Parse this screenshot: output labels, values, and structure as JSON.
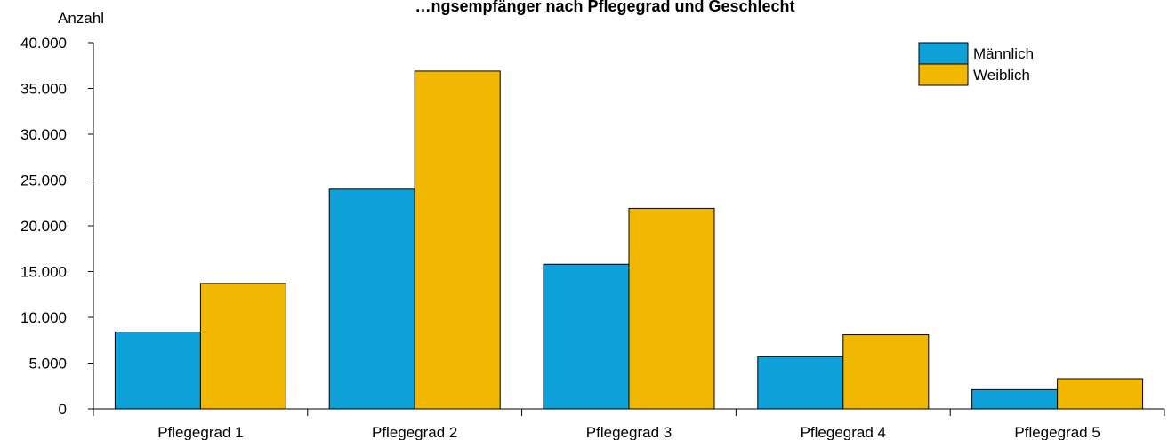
{
  "chart_data": {
    "type": "bar",
    "title": "…ngsempfänger nach Pflegegrad und Geschlecht",
    "ylabel": "Anzahl",
    "xlabel": "",
    "categories": [
      "Pflegegrad 1",
      "Pflegegrad 2",
      "Pflegegrad 3",
      "Pflegegrad 4",
      "Pflegegrad 5"
    ],
    "series": [
      {
        "name": "Männlich",
        "color": "#0ea0d8",
        "values": [
          8400,
          24000,
          15800,
          5700,
          2100
        ]
      },
      {
        "name": "Weiblich",
        "color": "#f2b700",
        "values": [
          13700,
          36900,
          21900,
          8100,
          3300
        ]
      }
    ],
    "ylim": [
      0,
      40000
    ],
    "yticks": [
      0,
      5000,
      10000,
      15000,
      20000,
      25000,
      30000,
      35000,
      40000
    ],
    "ytick_labels": [
      "0",
      "5.000",
      "10.000",
      "15.000",
      "20.000",
      "25.000",
      "30.000",
      "35.000",
      "40.000"
    ],
    "legend_position": "top-right",
    "grid": false
  }
}
